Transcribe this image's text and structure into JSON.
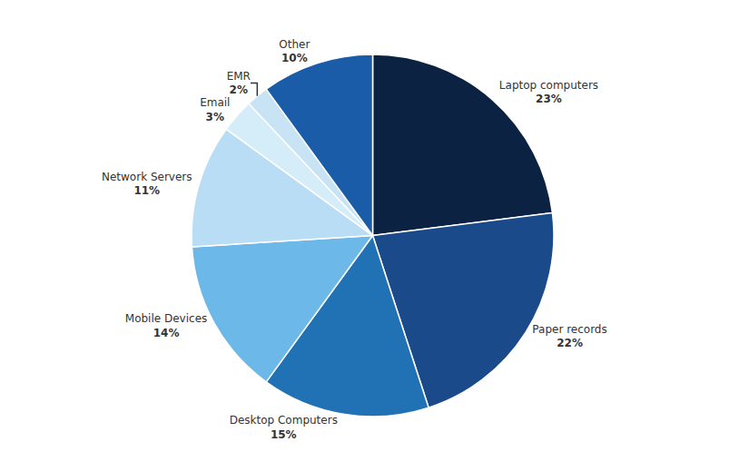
{
  "chart_data": {
    "type": "pie",
    "categories": [
      "Laptop computers",
      "Paper records",
      "Desktop Computers",
      "Mobile Devices",
      "Network Servers",
      "Email",
      "EMR",
      "Other"
    ],
    "values": [
      23,
      22,
      15,
      14,
      11,
      3,
      2,
      10
    ],
    "value_labels": [
      "23%",
      "22%",
      "15%",
      "14%",
      "11%",
      "3%",
      "2%",
      "10%"
    ],
    "colors": [
      "#0b2242",
      "#1a4a8a",
      "#2171b5",
      "#6cb8e8",
      "#b8ddf5",
      "#d4edf8",
      "#c8e4f4",
      "#1a5ca8"
    ],
    "data_labels": true
  }
}
